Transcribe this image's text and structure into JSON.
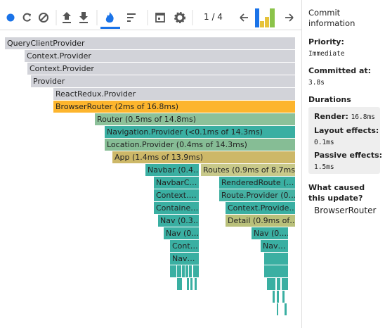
{
  "toolbar": {
    "commit_counter": "1 / 4"
  },
  "flamegraph": {
    "nodes": [
      "QueryClientProvider",
      "Context.Provider",
      "Context.Provider",
      "Provider",
      "ReactRedux.Provider",
      "BrowserRouter (2ms of 16.8ms)",
      "Router (0.5ms of 14.8ms)",
      "Navigation.Provider (<0.1ms of 14.3ms)",
      "Location.Provider (0.4ms of 14.3ms)",
      "App (1.4ms of 13.9ms)",
      "Navbar (0.4…",
      "Routes (0.9ms of 8.7ms)",
      "NavbarC…",
      "RenderedRoute (…",
      "Context.…",
      "Route.Provider (0…",
      "Containe…",
      "Context.Provide…",
      "Nav (0.3…",
      "Detail (0.9ms of…",
      "Nav (0.…",
      "Nav (0.…",
      "Cont…",
      "Nav…",
      "Nav…"
    ]
  },
  "sidebar": {
    "title": "Commit information",
    "priority_label": "Priority:",
    "priority_value": "Immediate",
    "committed_label": "Committed at:",
    "committed_value": "3.8s",
    "durations_title": "Durations",
    "render_label": "Render:",
    "render_value": "16.8ms",
    "layout_label": "Layout effects:",
    "layout_value": "0.1ms",
    "passive_label": "Passive effects:",
    "passive_value": "1.5ms",
    "cause_title": "What caused this update?",
    "cause_value": "BrowserRouter"
  }
}
